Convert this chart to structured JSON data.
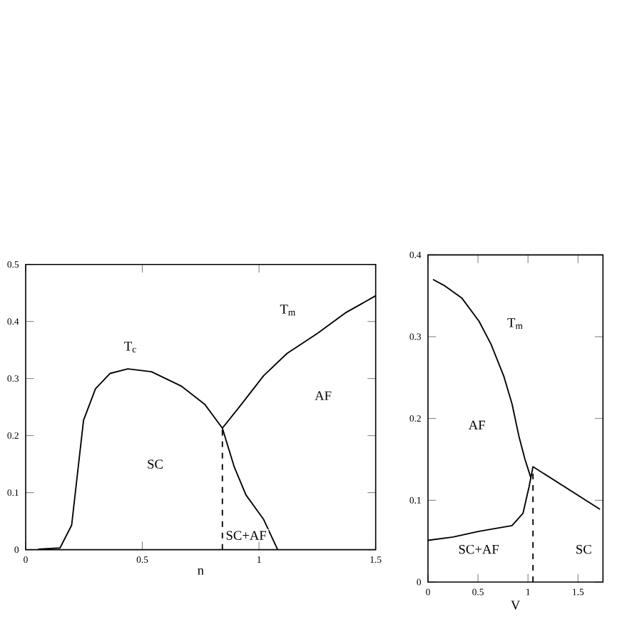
{
  "chart_data": [
    {
      "type": "line",
      "xlabel": "n",
      "xlim": [
        0,
        1.5
      ],
      "ylim": [
        0,
        0.5
      ],
      "xticks": [
        0,
        0.5,
        1,
        1.5
      ],
      "yticks": [
        0,
        0.1,
        0.2,
        0.3,
        0.4,
        0.5
      ],
      "grid": false,
      "series": [
        {
          "color": "#000000",
          "line_style": "solid",
          "x": [
            0.053,
            0.147,
            0.197,
            0.248,
            0.299,
            0.362,
            0.438,
            0.539,
            0.666,
            0.767,
            0.843,
            0.894,
            0.944,
            1.02,
            1.08
          ],
          "values": [
            0.001,
            0.003,
            0.043,
            0.227,
            0.282,
            0.309,
            0.317,
            0.312,
            0.287,
            0.255,
            0.213,
            0.145,
            0.096,
            0.053,
            0
          ]
        },
        {
          "color": "#000000",
          "line_style": "solid",
          "x": [
            0.843,
            0.919,
            1.02,
            1.12,
            1.25,
            1.37,
            1.5
          ],
          "values": [
            0.213,
            0.252,
            0.305,
            0.344,
            0.379,
            0.415,
            0.445
          ]
        },
        {
          "color": "#000000",
          "line_style": "dashed",
          "x": [
            0.843,
            0.843
          ],
          "values": [
            0,
            0.213
          ]
        }
      ],
      "annotations": [
        "T$_{c}$",
        "T$_{m}$",
        "AF",
        "SC",
        "SC+AF"
      ]
    },
    {
      "type": "line",
      "xlabel": "V",
      "xlim": [
        0,
        1.75
      ],
      "ylim": [
        0,
        0.4
      ],
      "xticks": [
        0,
        0.5,
        1,
        1.5
      ],
      "yticks": [
        0,
        0.1,
        0.2,
        0.3,
        0.4
      ],
      "grid": false,
      "series": [
        {
          "color": "#000000",
          "line_style": "solid",
          "x": [
            0.05,
            0.17,
            0.34,
            0.51,
            0.63,
            0.76,
            0.84,
            0.91,
            0.97,
            1.03
          ],
          "values": [
            0.37,
            0.362,
            0.347,
            0.319,
            0.291,
            0.251,
            0.218,
            0.178,
            0.15,
            0.127
          ]
        },
        {
          "color": "#000000",
          "line_style": "solid",
          "x": [
            0,
            0.25,
            0.51,
            0.84,
            0.95,
            1.01,
            1.05,
            1.72
          ],
          "values": [
            0.051,
            0.055,
            0.062,
            0.069,
            0.084,
            0.116,
            0.141,
            0.089
          ]
        },
        {
          "color": "#000000",
          "line_style": "dashed",
          "x": [
            1.05,
            1.05
          ],
          "values": [
            0,
            0.141
          ]
        }
      ],
      "annotations": [
        "T$_{m}$",
        "AF",
        "SC+AF",
        "SC"
      ]
    }
  ]
}
